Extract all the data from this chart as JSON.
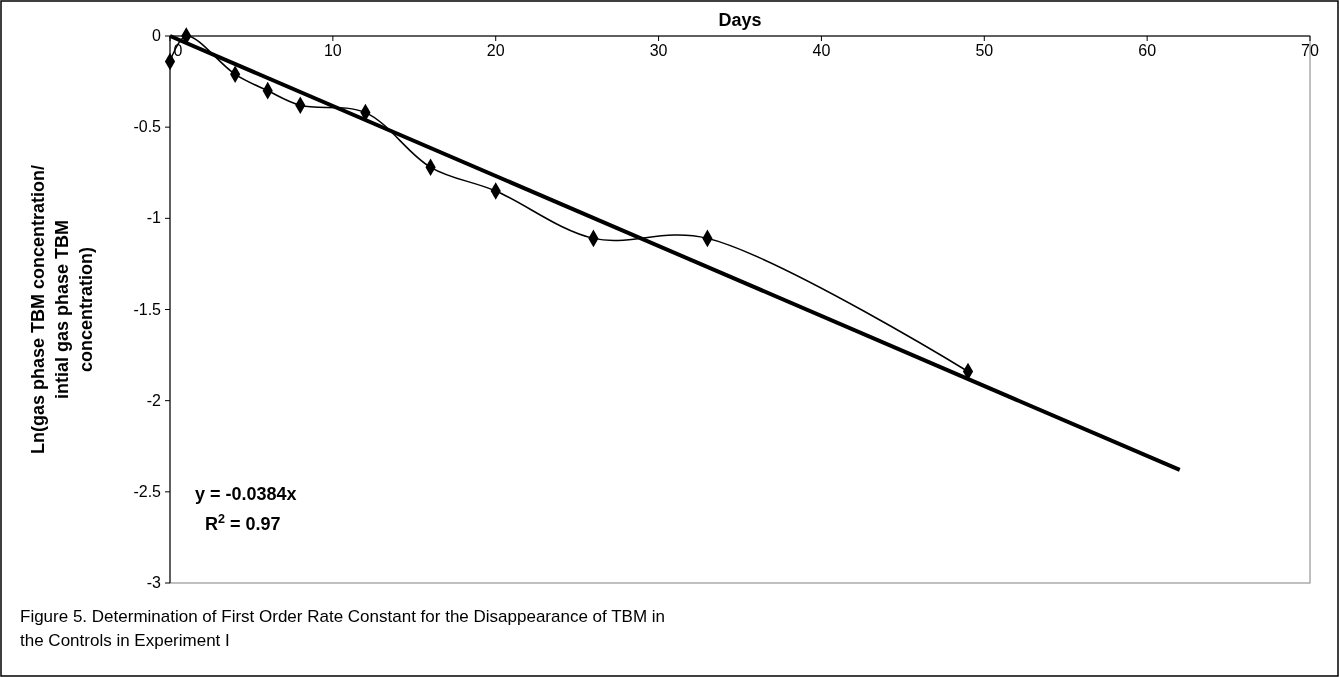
{
  "chart_data": {
    "type": "line",
    "xlabel": "Days",
    "ylabel": "Ln(gas phase TBM concentration/ intial gas phase TBM concentration)",
    "xlim": [
      0,
      70
    ],
    "xticks": [
      0,
      10,
      20,
      30,
      40,
      50,
      60,
      70
    ],
    "ylim": [
      -3,
      0
    ],
    "yticks": [
      -3,
      -2.5,
      -2,
      -1.5,
      -1,
      -0.5,
      0
    ],
    "series": [
      {
        "color": "#000000",
        "marker": "diamond",
        "x": [
          0,
          1,
          4,
          6,
          8,
          12,
          16,
          20,
          26,
          33,
          49
        ],
        "values": [
          -0.14,
          0,
          -0.21,
          -0.3,
          -0.38,
          -0.42,
          -0.72,
          -0.85,
          -1.11,
          -1.11,
          -1.84
        ]
      },
      {
        "color": "#000000",
        "marker": "none",
        "x": [
          0,
          62
        ],
        "values": [
          0,
          -2.38
        ]
      }
    ],
    "annotations": [
      "y = -0.0384x",
      "R$^{2}$ = 0.97",
      "Figure 5. Determination of First Order Rate Constant for the Disappearance of TBM in the Controls in Experiment I"
    ]
  }
}
